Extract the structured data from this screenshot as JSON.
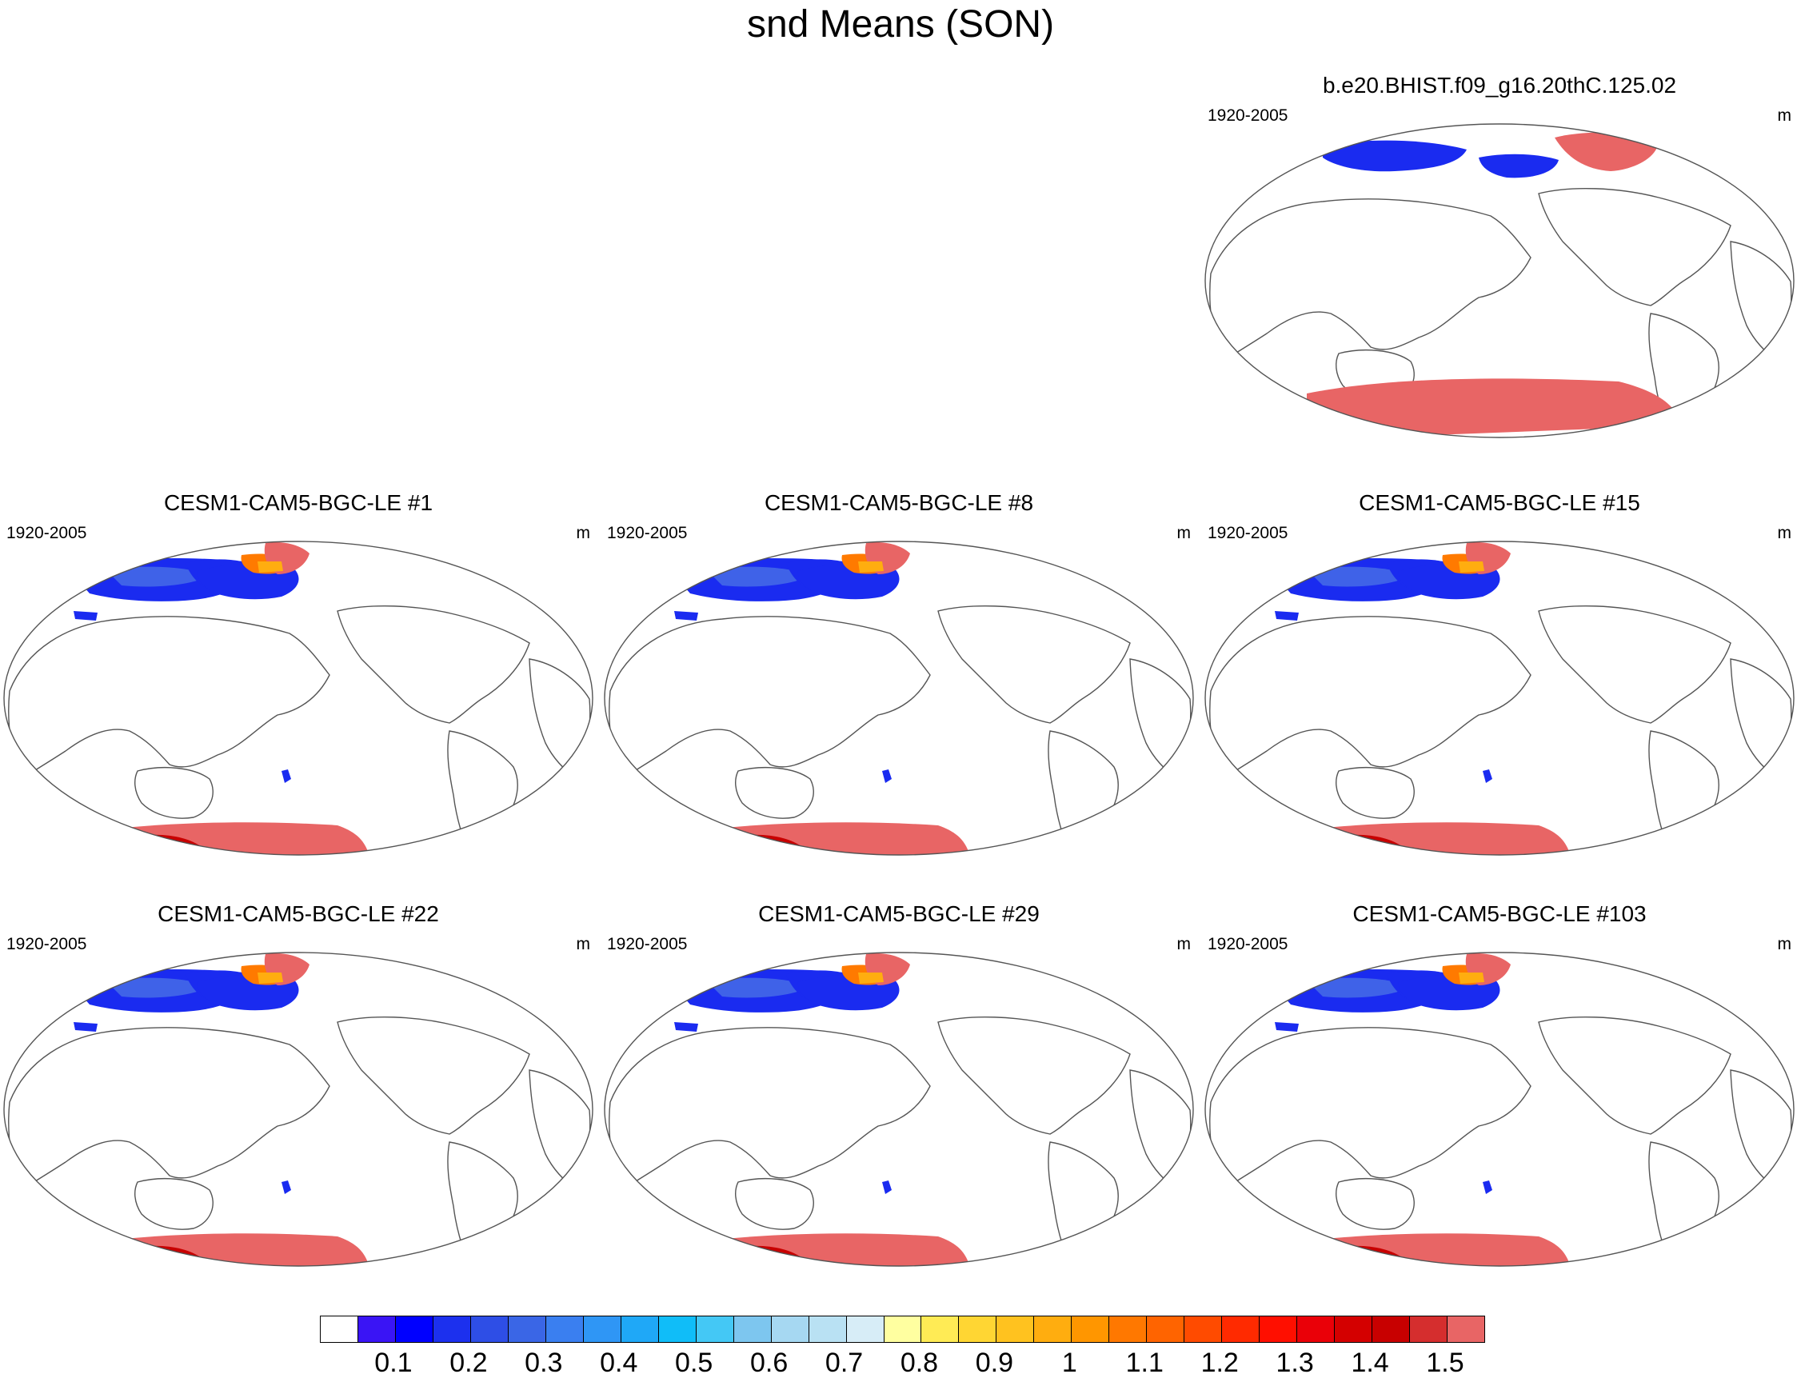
{
  "title": "snd Means (SON)",
  "panels": [
    {
      "id": "obs",
      "title": "b.e20.BHIST.f09_g16.20thC.125.02",
      "period": "1920-2005",
      "units": "m"
    },
    {
      "id": "m1",
      "title": "CESM1-CAM5-BGC-LE #1",
      "period": "1920-2005",
      "units": "m"
    },
    {
      "id": "m8",
      "title": "CESM1-CAM5-BGC-LE #8",
      "period": "1920-2005",
      "units": "m"
    },
    {
      "id": "m15",
      "title": "CESM1-CAM5-BGC-LE #15",
      "period": "1920-2005",
      "units": "m"
    },
    {
      "id": "m22",
      "title": "CESM1-CAM5-BGC-LE #22",
      "period": "1920-2005",
      "units": "m"
    },
    {
      "id": "m29",
      "title": "CESM1-CAM5-BGC-LE #29",
      "period": "1920-2005",
      "units": "m"
    },
    {
      "id": "m103",
      "title": "CESM1-CAM5-BGC-LE #103",
      "period": "1920-2005",
      "units": "m"
    }
  ],
  "colorbar": {
    "labels": [
      "0.1",
      "0.2",
      "0.3",
      "0.4",
      "0.5",
      "0.6",
      "0.7",
      "0.8",
      "0.9",
      "1",
      "1.1",
      "1.2",
      "1.3",
      "1.4",
      "1.5"
    ],
    "colors": [
      "#ffffff",
      "#3a14f5",
      "#0000ff",
      "#1c30ee",
      "#2e4ee6",
      "#3a66e6",
      "#3a7ff0",
      "#2f96f5",
      "#1fa8f7",
      "#10bdf8",
      "#44c8f5",
      "#7dc6ef",
      "#a6d8f2",
      "#b9e1f3",
      "#d7edf7",
      "#ffffa0",
      "#ffeb55",
      "#ffd633",
      "#ffc21f",
      "#ffad0f",
      "#ff9600",
      "#ff7800",
      "#ff6400",
      "#ff4b00",
      "#ff2a00",
      "#ff0f00",
      "#ea0008",
      "#d40000",
      "#c80000",
      "#d52e2e",
      "#e86565"
    ]
  },
  "legend_ticks": [
    "0.1",
    "0.2",
    "0.3",
    "0.4",
    "0.5",
    "0.6",
    "0.7",
    "0.8",
    "0.9",
    "1",
    "1.1",
    "1.2",
    "1.3",
    "1.4",
    "1.5"
  ]
}
